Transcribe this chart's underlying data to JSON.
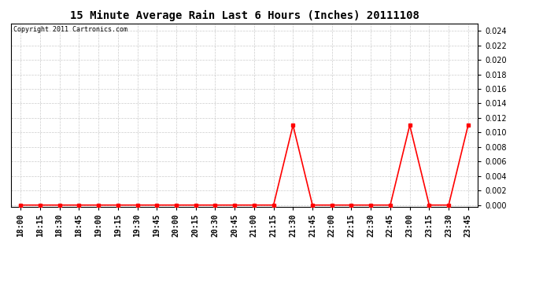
{
  "title": "15 Minute Average Rain Last 6 Hours (Inches) 20111108",
  "copyright_text": "Copyright 2011 Cartronics.com",
  "line_color": "red",
  "marker": "s",
  "marker_size": 2.5,
  "line_width": 1.2,
  "background_color": "#ffffff",
  "grid_color": "#cccccc",
  "ylim_min": -0.0002,
  "ylim_max": 0.025,
  "yticks": [
    0.0,
    0.002,
    0.004,
    0.006,
    0.008,
    0.01,
    0.012,
    0.014,
    0.016,
    0.018,
    0.02,
    0.022,
    0.024
  ],
  "x_labels": [
    "18:00",
    "18:15",
    "18:30",
    "18:45",
    "19:00",
    "19:15",
    "19:30",
    "19:45",
    "20:00",
    "20:15",
    "20:30",
    "20:45",
    "21:00",
    "21:15",
    "21:30",
    "21:45",
    "22:00",
    "22:15",
    "22:30",
    "22:45",
    "23:00",
    "23:15",
    "23:30",
    "23:45"
  ],
  "values": [
    0.0,
    0.0,
    0.0,
    0.0,
    0.0,
    0.0,
    0.0,
    0.0,
    0.0,
    0.0,
    0.0,
    0.0,
    0.0,
    0.0,
    0.011,
    0.0,
    0.0,
    0.0,
    0.0,
    0.0,
    0.011,
    0.0,
    0.0,
    0.011
  ],
  "title_fontsize": 10,
  "copyright_fontsize": 6,
  "tick_fontsize": 7,
  "ytick_fontsize": 7,
  "border_color": "#000000"
}
